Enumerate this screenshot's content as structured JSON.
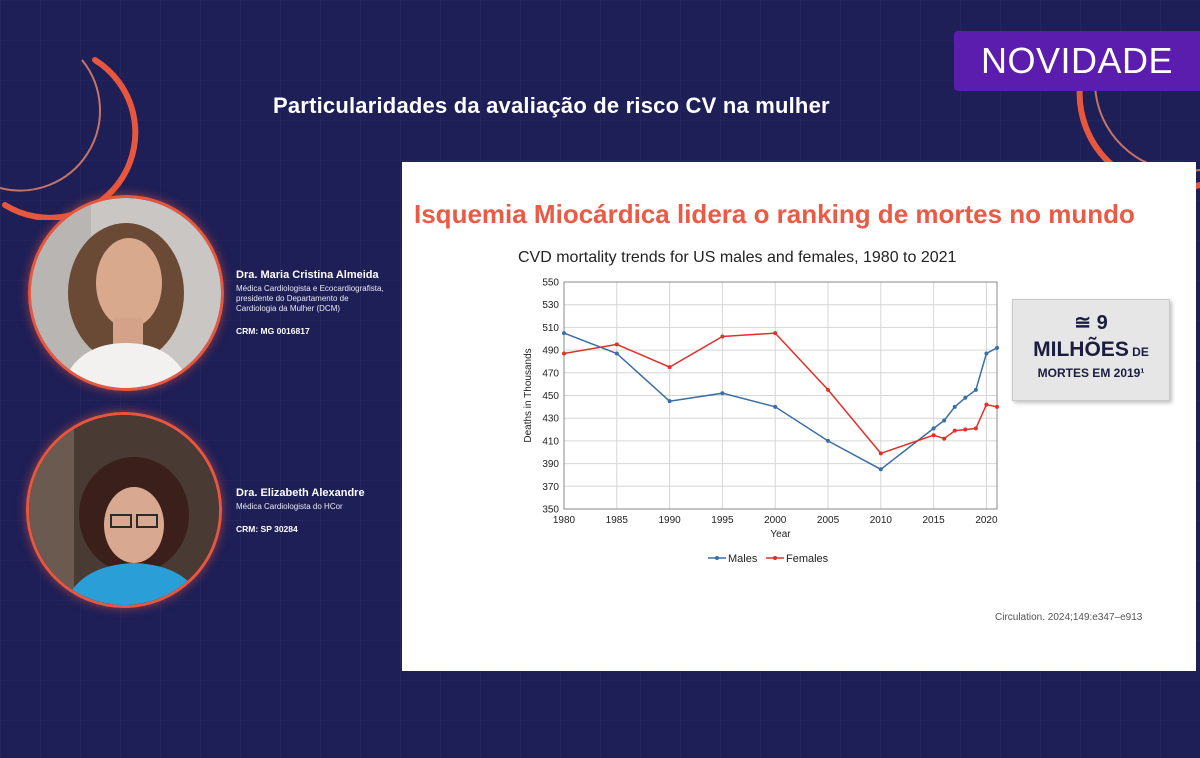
{
  "badge": {
    "label": "NOVIDADE"
  },
  "header": {
    "title": "Particularidades da avaliação de risco CV na mulher"
  },
  "speakers": [
    {
      "name": "Dra. Maria Cristina Almeida",
      "description": "Médica Cardiologista e Ecocardiografista, presidente do Departamento de Cardiologia da Mulher (DCM)",
      "crm": "CRM: MG 0016817"
    },
    {
      "name": "Dra. Elizabeth Alexandre",
      "description": "Médica Cardiologista do HCor",
      "crm": "CRM: SP 30284"
    }
  ],
  "slide": {
    "title": "Isquemia Miocárdica lidera o ranking de mortes no mundo",
    "callout": {
      "line1": "≅ 9",
      "line2_main": "MILHÕES",
      "line2_suffix": " DE",
      "line3": "MORTES EM 2019¹"
    },
    "citation": "Circulation. 2024;149:e347–e913"
  },
  "colors": {
    "background": "#1e1f57",
    "badge": "#5b1dad",
    "accent": "#e8573d",
    "slide_title": "#ea5a45",
    "males": "#3a6ea5",
    "females": "#e0302a"
  },
  "chart_data": {
    "type": "line",
    "title": "CVD mortality trends for US males and females, 1980 to 2021",
    "xlabel": "Year",
    "ylabel": "Deaths in Thousands",
    "xlim": [
      1980,
      2021
    ],
    "ylim": [
      350,
      550
    ],
    "xticks": [
      1980,
      1985,
      1990,
      1995,
      2000,
      2005,
      2010,
      2015,
      2020
    ],
    "yticks": [
      350,
      370,
      390,
      410,
      430,
      450,
      470,
      490,
      510,
      530,
      550
    ],
    "grid": true,
    "legend": "bottom",
    "series": [
      {
        "name": "Males",
        "color": "#3a6ea5",
        "points": [
          [
            1980,
            505
          ],
          [
            1985,
            487
          ],
          [
            1990,
            445
          ],
          [
            1995,
            452
          ],
          [
            2000,
            440
          ],
          [
            2005,
            410
          ],
          [
            2010,
            385
          ],
          [
            2015,
            421
          ],
          [
            2016,
            428
          ],
          [
            2017,
            440
          ],
          [
            2018,
            448
          ],
          [
            2019,
            455
          ],
          [
            2020,
            487
          ],
          [
            2021,
            492
          ]
        ]
      },
      {
        "name": "Females",
        "color": "#e0302a",
        "points": [
          [
            1980,
            487
          ],
          [
            1985,
            495
          ],
          [
            1990,
            475
          ],
          [
            1995,
            502
          ],
          [
            2000,
            505
          ],
          [
            2005,
            455
          ],
          [
            2010,
            399
          ],
          [
            2015,
            415
          ],
          [
            2016,
            412
          ],
          [
            2017,
            419
          ],
          [
            2018,
            420
          ],
          [
            2019,
            421
          ],
          [
            2020,
            442
          ],
          [
            2021,
            440
          ]
        ]
      }
    ]
  }
}
